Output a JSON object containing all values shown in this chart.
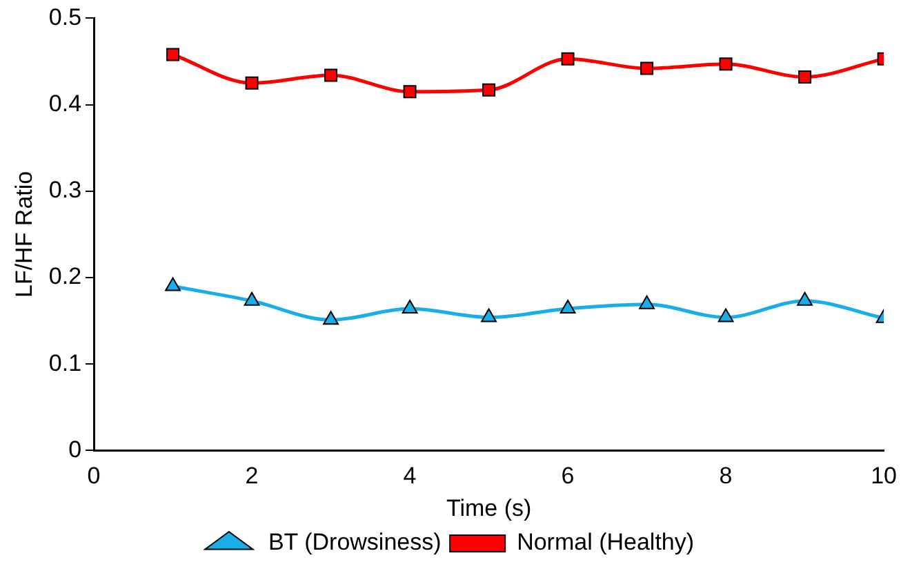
{
  "chart_data": {
    "type": "line",
    "xlabel": "Time (s)",
    "ylabel": "LF/HF Ratio",
    "x": [
      1,
      2,
      3,
      4,
      5,
      6,
      7,
      8,
      9,
      10
    ],
    "xlim": [
      0,
      10
    ],
    "xticks": [
      0,
      2,
      4,
      6,
      8,
      10
    ],
    "ylim": [
      0,
      0.5
    ],
    "yticks": [
      0,
      0.1,
      0.2,
      0.3,
      0.4,
      0.5
    ],
    "grid": false,
    "legend": "bottom",
    "series": [
      {
        "name": "BT (Drowsiness)",
        "color": "#19aee8",
        "marker": "triangle",
        "values": [
          0.19,
          0.173,
          0.151,
          0.164,
          0.154,
          0.164,
          0.169,
          0.154,
          0.173,
          0.153
        ]
      },
      {
        "name": "Normal (Healthy)",
        "color": "#ff0000",
        "marker": "square",
        "values": [
          0.458,
          0.425,
          0.434,
          0.415,
          0.417,
          0.453,
          0.442,
          0.447,
          0.432,
          0.453
        ]
      }
    ]
  }
}
